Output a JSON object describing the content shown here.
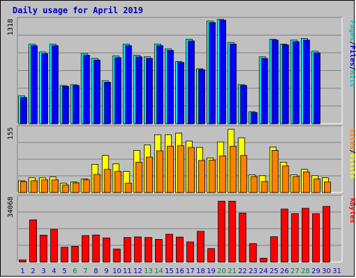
{
  "chart_data": {
    "type": "bar",
    "title": "Daily usage for April 2019",
    "categories": [
      "1",
      "2",
      "3",
      "4",
      "5",
      "6",
      "7",
      "8",
      "9",
      "10",
      "11",
      "12",
      "13",
      "14",
      "15",
      "16",
      "17",
      "18",
      "19",
      "20",
      "21",
      "22",
      "23",
      "24",
      "25",
      "26",
      "27",
      "28",
      "29",
      "30",
      "31"
    ],
    "weekend_days": [
      "6",
      "7",
      "13",
      "14",
      "20",
      "21",
      "27",
      "28"
    ],
    "colors": {
      "pages": "#00c0c0",
      "files": "#0000ff",
      "hits": "#00ffff",
      "sites": "#ff8000",
      "visits": "#ffff00",
      "kbytes": "#ff0000",
      "title": "#0000c0",
      "weekday_label": "#0000c0",
      "weekend_label": "#008040",
      "panel_bg": "#c0c0c0"
    },
    "panels": [
      {
        "key": "hits_files",
        "max_label": "1318",
        "ymax": 1318,
        "legend": [
          {
            "text": "Pages",
            "color": "#00c0c0"
          },
          {
            "text": "/",
            "color": "#000000"
          },
          {
            "text": "Files",
            "color": "#0000ff"
          },
          {
            "text": "/",
            "color": "#000000"
          },
          {
            "text": "Hits",
            "color": "#00c0c0"
          }
        ],
        "series": [
          {
            "name": "Hits",
            "color": "#00ffff",
            "values": [
              350,
              1000,
              900,
              1000,
              480,
              490,
              880,
              820,
              540,
              850,
              1000,
              860,
              840,
              1000,
              940,
              780,
              1060,
              690,
              1290,
              1310,
              1020,
              490,
              150,
              840,
              1060,
              1000,
              1050,
              1070,
              910,
              null,
              null
            ]
          },
          {
            "name": "Files",
            "color": "#0000ff",
            "values": [
              330,
              980,
              880,
              980,
              470,
              480,
              860,
              800,
              520,
              830,
              980,
              840,
              820,
              980,
              920,
              770,
              1040,
              680,
              1270,
              1300,
              1000,
              480,
              140,
              820,
              1050,
              990,
              1030,
              1050,
              890,
              null,
              null
            ]
          }
        ]
      },
      {
        "key": "sites_visits",
        "max_label": "155",
        "ymax": 155,
        "legend": [
          {
            "text": "Sites",
            "color": "#ff8000"
          },
          {
            "text": "/",
            "color": "#000000"
          },
          {
            "text": "Visits",
            "color": "#ffff00"
          }
        ],
        "series": [
          {
            "name": "Visits",
            "color": "#ffff00",
            "values": [
              28,
              35,
              35,
              37,
              22,
              25,
              32,
              67,
              88,
              68,
              50,
              100,
              113,
              137,
              137,
              141,
              122,
              107,
              82,
              120,
              150,
              130,
              42,
              40,
              108,
              72,
              42,
              55,
              40,
              35,
              null
            ]
          },
          {
            "name": "Sites",
            "color": "#ff8000",
            "values": [
              26,
              28,
              30,
              30,
              18,
              23,
              30,
              43,
              55,
              50,
              22,
              72,
              84,
              99,
              110,
              111,
              107,
              76,
              77,
              87,
              110,
              88,
              38,
              26,
              100,
              63,
              38,
              49,
              32,
              25,
              null
            ]
          }
        ]
      },
      {
        "key": "kbytes",
        "max_label": "34068",
        "ymax": 34068,
        "legend": [
          {
            "text": "KBytes",
            "color": "#ff0000"
          }
        ],
        "series": [
          {
            "name": "KBytes",
            "color": "#ff0000",
            "values": [
              1100,
              22000,
              14000,
              17000,
              7700,
              8200,
              13800,
              14100,
              12600,
              6800,
              12800,
              13100,
              12800,
              11800,
              14500,
              13000,
              10500,
              16000,
              7000,
              31700,
              31700,
              25500,
              9600,
              2000,
              13200,
              27600,
              25200,
              28000,
              25200,
              29000,
              null
            ]
          }
        ]
      }
    ]
  }
}
